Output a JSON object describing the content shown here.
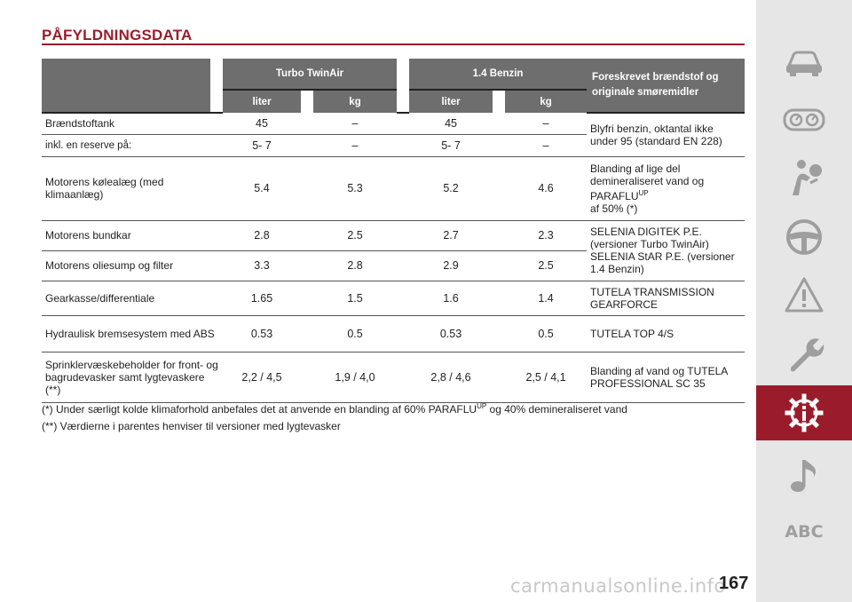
{
  "page": {
    "title": "PÅFYLDNINGSDATA",
    "page_number": "167",
    "watermark": "carmanualsonline.info"
  },
  "table": {
    "groups": [
      "Turbo TwinAir",
      "1.4 Benzin"
    ],
    "spec_header": "Foreskrevet brændstof og originale smøremidler",
    "units": [
      "liter",
      "kg",
      "liter",
      "kg"
    ],
    "rows": [
      {
        "label": "Brændstoftank",
        "v1": "45",
        "v2": "–",
        "v3": "45",
        "v4": "–"
      },
      {
        "label": "inkl. en reserve på:",
        "v1": "5- 7",
        "v2": "–",
        "v3": "5- 7",
        "v4": "–"
      },
      {
        "label": "Motorens kølealæg (med klimaanlæg)",
        "v1": "5.4",
        "v2": "5.3",
        "v3": "5.2",
        "v4": "4.6"
      },
      {
        "label": "Motorens bundkar",
        "v1": "2.8",
        "v2": "2.5",
        "v3": "2.7",
        "v4": "2.3"
      },
      {
        "label": "Motorens oliesump og filter",
        "v1": "3.3",
        "v2": "2.8",
        "v3": "2.9",
        "v4": "2.5"
      },
      {
        "label": "Gearkasse/differentiale",
        "v1": "1.65",
        "v2": "1.5",
        "v3": "1.6",
        "v4": "1.4"
      },
      {
        "label": "Hydraulisk bremsesystem med ABS",
        "v1": "0.53",
        "v2": "0.5",
        "v3": "0.53",
        "v4": "0.5"
      },
      {
        "label": "Sprinklervæskebeholder for front- og bagrudevasker samt lygtevaskere (**)",
        "v1": "2,2 / 4,5",
        "v2": "1,9 / 4,0",
        "v3": "2,8 / 4,6",
        "v4": "2,5 / 4,1"
      }
    ],
    "specs": {
      "fuel": "Blyfri benzin, oktantal ikke under 95 (standard EN 228)",
      "coolant_main": "Blanding af lige del demineraliseret vand og PARAFLU",
      "coolant_sup": "UP",
      "coolant_tail": "af 50% (*)",
      "oil": "SELENIA DIGITEK P.E. (versioner Turbo TwinAir) SELENIA StAR P.E. (versioner 1.4 Benzin)",
      "gearbox": "TUTELA TRANSMISSION GEARFORCE",
      "brake": "TUTELA TOP 4/S",
      "washer": "Blanding af vand og TUTELA PROFESSIONAL SC 35"
    }
  },
  "notes": {
    "note1_pre": "(*) Under særligt kolde klimaforhold anbefales det at anvende en blanding af 60% PARAFLU",
    "note1_sup": "UP",
    "note1_post": " og 40% demineraliseret vand",
    "note2": "(**) Værdierne i parentes henviser til versioner med lygtevasker"
  },
  "sidebar": {
    "items": [
      {
        "icon": "car-icon"
      },
      {
        "icon": "dashboard-gauges-icon"
      },
      {
        "icon": "airbag-person-icon"
      },
      {
        "icon": "steering-wheel-icon"
      },
      {
        "icon": "warning-triangle-icon"
      },
      {
        "icon": "wrench-icon"
      },
      {
        "icon": "technical-data-gear-icon"
      },
      {
        "icon": "music-note-icon"
      },
      {
        "label": "ABC"
      }
    ],
    "active_index": 6,
    "active_color": "#9a1c2b",
    "icon_color": "#9e9e9e"
  }
}
